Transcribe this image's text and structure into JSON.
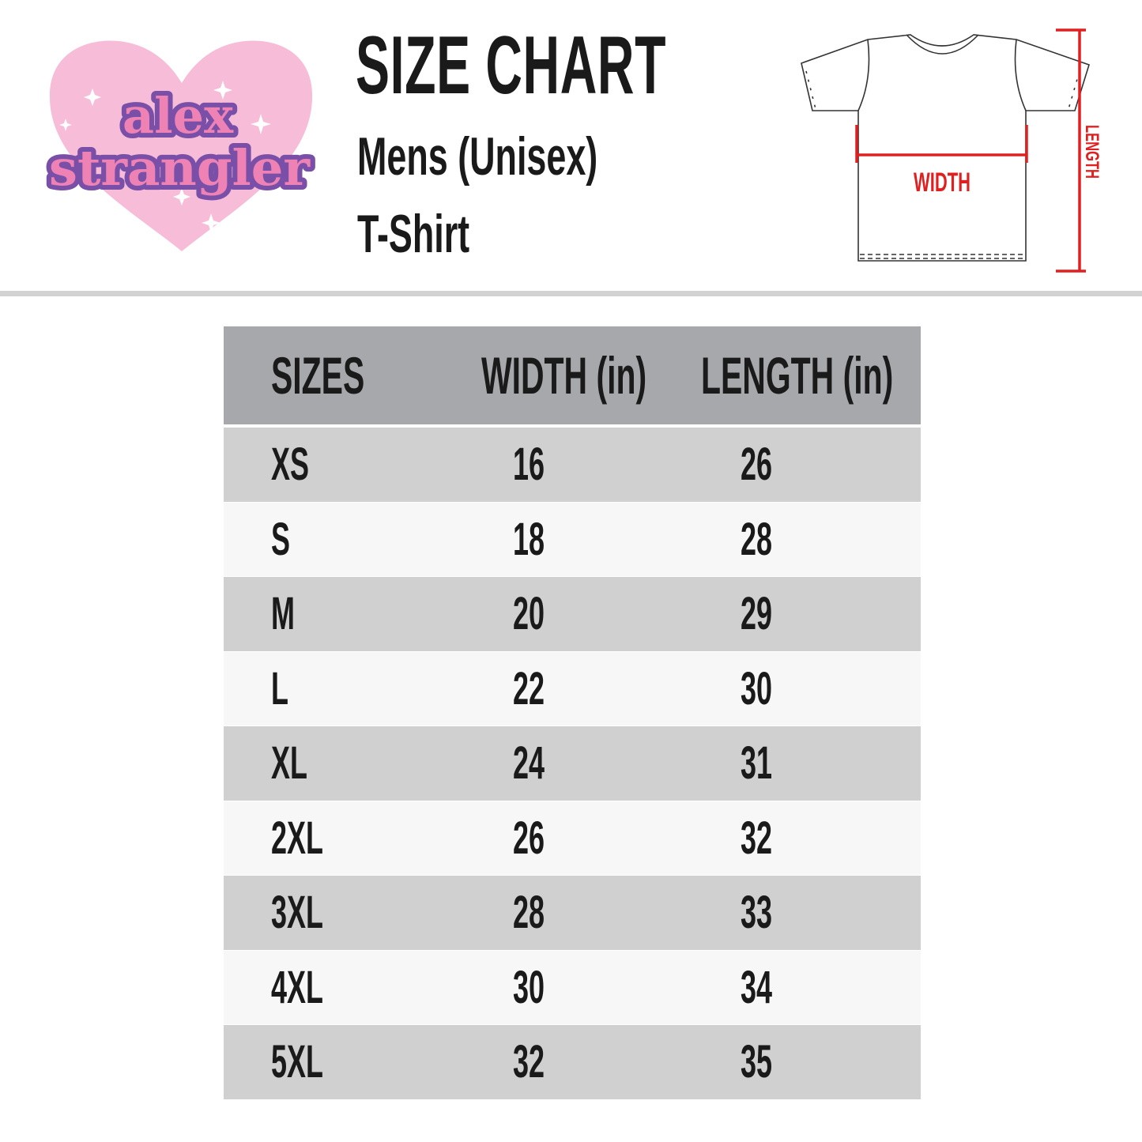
{
  "logo": {
    "text_line1": "alex",
    "text_line2": "strangler"
  },
  "header": {
    "title": "SIZE CHART",
    "subtitle": "Mens (Unisex)",
    "product": "T-Shirt"
  },
  "diagram": {
    "width_label": "WIDTH",
    "length_label": "LENGTH",
    "accent_color": "#e02020"
  },
  "table": {
    "columns": [
      "SIZES",
      "WIDTH (in)",
      "LENGTH (in)"
    ],
    "rows": [
      [
        "XS",
        "16",
        "26"
      ],
      [
        "S",
        "18",
        "28"
      ],
      [
        "M",
        "20",
        "29"
      ],
      [
        "L",
        "22",
        "30"
      ],
      [
        "XL",
        "24",
        "31"
      ],
      [
        "2XL",
        "26",
        "32"
      ],
      [
        "3XL",
        "28",
        "33"
      ],
      [
        "4XL",
        "30",
        "34"
      ],
      [
        "5XL",
        "32",
        "35"
      ]
    ]
  },
  "colors": {
    "header_bg": "#a7a8ab",
    "row_dark": "#d0d0d0",
    "row_light": "#f7f7f7",
    "logo_pink": "#f4b8d4"
  }
}
